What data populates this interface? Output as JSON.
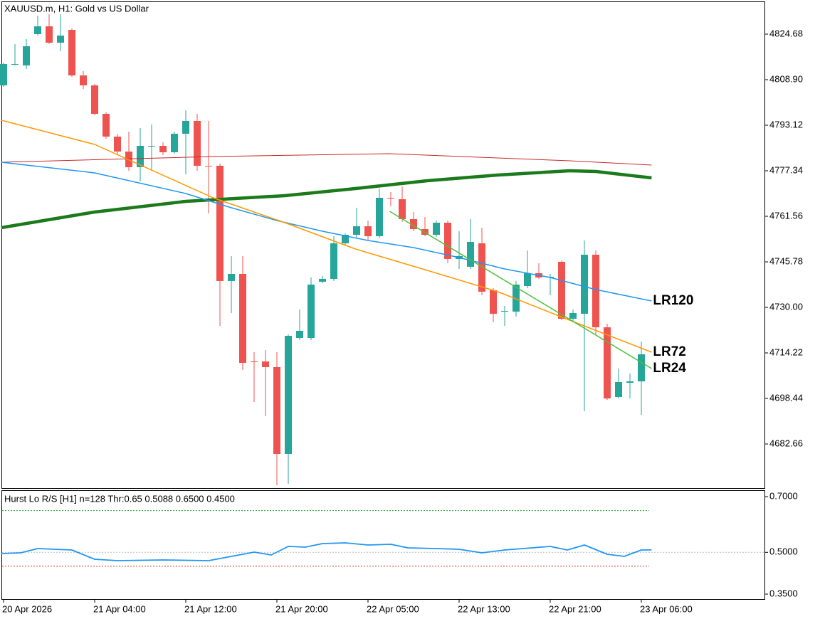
{
  "chart_data": [
    {
      "type": "candlestick",
      "title": "XAUUSD.m, H1:  Gold vs US Dollar",
      "categories": [
        "20 Apr 2026",
        null,
        null,
        null,
        null,
        null,
        null,
        null,
        "21 Apr 04:00",
        null,
        null,
        null,
        null,
        null,
        null,
        null,
        "21 Apr 12:00",
        null,
        null,
        null,
        null,
        null,
        null,
        null,
        "21 Apr 20:00",
        null,
        null,
        null,
        null,
        null,
        null,
        null,
        "22 Apr 05:00",
        null,
        null,
        null,
        null,
        null,
        null,
        null,
        "22 Apr 13:00",
        null,
        null,
        null,
        null,
        null,
        null,
        null,
        "22 Apr 21:00",
        null,
        null,
        null,
        null,
        null,
        null,
        null,
        "23 Apr 06:00"
      ],
      "open": [
        4806.93,
        4814.08,
        4813.83,
        4824.68,
        4827.39,
        4821.72,
        4826.16,
        4810.38,
        4806.93,
        4797.07,
        4789.18,
        4784.0,
        4778.58,
        4785.73,
        4785.97,
        4783.75,
        4790.17,
        4794.6,
        4779.07,
        4779.07,
        4739.13,
        4741.59,
        4711.26,
        4711.26,
        4709.29,
        4679.21,
        4719.4,
        4719.4,
        4738.88,
        4739.87,
        4752.2,
        4755.15,
        4758.11,
        4754.66,
        4767.97,
        4767.48,
        4760.57,
        4757.12,
        4755.15,
        4759.34,
        4746.77,
        4744.06,
        4752.2,
        4735.92,
        4728.53,
        4728.53,
        4737.4,
        4741.84,
        4740.36,
        4745.79,
        4726.06,
        4727.79,
        4748.25,
        4723.1,
        4698.94,
        4703.87,
        4704.36
      ],
      "high": [
        4814.82,
        4821.23,
        4822.96,
        4831.09,
        4831.58,
        4831.58,
        4826.65,
        4811.86,
        4807.42,
        4797.56,
        4790.17,
        4790.9,
        4792.13,
        4793.37,
        4787.2,
        4790.9,
        4798.3,
        4797.07,
        4794.6,
        4779.81,
        4747.76,
        4747.76,
        4714.47,
        4715.21,
        4714.47,
        4720.63,
        4729.26,
        4740.36,
        4740.85,
        4754.66,
        4755.65,
        4764.52,
        4760.09,
        4771.18,
        4769.95,
        4771.92,
        4763.05,
        4761.32,
        4760.09,
        4760.09,
        4756.39,
        4760.57,
        4757.62,
        4736.66,
        4730.5,
        4739.13,
        4749.73,
        4745.29,
        4741.59,
        4746.28,
        4729.26,
        4753.18,
        4749.73,
        4724.34,
        4708.8,
        4707.08,
        4718.17
      ],
      "low": [
        4806.44,
        4813.83,
        4812.6,
        4824.19,
        4821.23,
        4818.76,
        4809.89,
        4805.7,
        4796.57,
        4788.44,
        4782.77,
        4777.34,
        4773.64,
        4777.34,
        4782.77,
        4783.26,
        4776.11,
        4777.34,
        4762.55,
        4723.59,
        4728.03,
        4708.31,
        4697.21,
        4692.28,
        4668.36,
        4668.85,
        4718.66,
        4718.66,
        4738.38,
        4739.13,
        4751.46,
        4753.92,
        4753.18,
        4753.92,
        4765.02,
        4759.59,
        4756.39,
        4754.66,
        4754.41,
        4745.29,
        4743.32,
        4743.32,
        4734.2,
        4724.83,
        4723.59,
        4726.8,
        4736.66,
        4739.87,
        4734.2,
        4725.57,
        4725.07,
        4694.01,
        4720.63,
        4697.95,
        4698.44,
        4698.44,
        4692.78
      ],
      "close": [
        4814.33,
        4814.33,
        4820.49,
        4827.39,
        4821.72,
        4824.19,
        4810.38,
        4806.93,
        4797.07,
        4789.18,
        4784.0,
        4778.58,
        4785.97,
        4785.97,
        4783.75,
        4790.17,
        4794.6,
        4779.07,
        4778.82,
        4739.13,
        4741.59,
        4710.77,
        4711.02,
        4709.29,
        4679.21,
        4720.14,
        4721.87,
        4737.89,
        4739.87,
        4752.2,
        4755.15,
        4758.11,
        4754.66,
        4767.97,
        4767.73,
        4760.57,
        4757.12,
        4755.15,
        4759.34,
        4746.77,
        4747.76,
        4752.69,
        4735.43,
        4727.79,
        4728.77,
        4737.89,
        4741.84,
        4740.36,
        4740.61,
        4726.06,
        4728.03,
        4748.25,
        4723.1,
        4698.44,
        4704.12,
        4704.36,
        4713.74
      ],
      "up_color": "#26a69a",
      "down_color": "#ef5350",
      "series": [
        {
          "color": "#c62828",
          "x": [
            -0.2,
            18.4,
            33.9,
            49.7,
            56.9
          ],
          "values": [
            4780.3,
            4782.27,
            4783.26,
            4780.8,
            4779.31
          ]
        },
        {
          "color": "#1b7a1b",
          "x": [
            -0.2,
            8,
            16,
            24.7,
            30.9,
            37.2,
            43.4,
            49.7,
            52,
            56.9
          ],
          "values": [
            4757.62,
            4763.05,
            4766.74,
            4768.72,
            4771.18,
            4773.89,
            4775.87,
            4777.34,
            4777.1,
            4774.88
          ]
        },
        {
          "name": "LR120",
          "color": "#2196f3",
          "x": [
            -0.2,
            8,
            16,
            20,
            24,
            28,
            32,
            36,
            40,
            44,
            48,
            52,
            56.9
          ],
          "values": [
            4780.3,
            4776.6,
            4769.45,
            4764.52,
            4760.09,
            4756.39,
            4753.18,
            4750.71,
            4747.26,
            4743.32,
            4740.36,
            4736.17,
            4732.22
          ]
        },
        {
          "name": "LR72",
          "color": "#ff9800",
          "x": [
            -0.2,
            8,
            18.4,
            24.7,
            30.9,
            37.2,
            43.4,
            49.7,
            56.9
          ],
          "values": [
            4794.85,
            4786.46,
            4767.97,
            4759.34,
            4750.22,
            4742.82,
            4735.43,
            4725.57,
            4714.47
          ]
        },
        {
          "name": "LR24",
          "color": "#4cc03a",
          "x": [
            33.9,
            56.9
          ],
          "values": [
            4763.29,
            4708.8
          ]
        }
      ],
      "ylim": [
        4667.13,
        4836.02
      ],
      "yticks": [
        4824.68,
        {
          "value": 4808.9,
          "label": "4808.90"
        },
        4793.12,
        4777.34,
        4761.56,
        4745.78,
        {
          "value": 4730,
          "label": "4730.00"
        },
        4714.22,
        4698.44,
        4682.66
      ]
    },
    {
      "type": "line",
      "title": "Hurst Lo R/S [H1] n=128 Thr:0.65 0.5088 0.6500 0.4500",
      "series": [
        {
          "color": "#2196f3",
          "x": [
            -0.2,
            1.5,
            3,
            6,
            8,
            10,
            14,
            18,
            20,
            22,
            23.5,
            25,
            26.5,
            28,
            30,
            32,
            34,
            35.5,
            38,
            40,
            42,
            44,
            48,
            49.5,
            51,
            53,
            54.5,
            56,
            56.9
          ],
          "values": [
            0.4957,
            0.4982,
            0.5136,
            0.5084,
            0.4752,
            0.4701,
            0.4727,
            0.4701,
            0.4855,
            0.5008,
            0.4906,
            0.5212,
            0.5187,
            0.5314,
            0.534,
            0.5263,
            0.5289,
            0.5161,
            0.5136,
            0.511,
            0.4982,
            0.5084,
            0.5212,
            0.5084,
            0.5263,
            0.4931,
            0.4855,
            0.5084,
            0.5088
          ]
        }
      ],
      "levels": [
        {
          "value": 0.65,
          "color": "#2e9e3e"
        },
        {
          "value": 0.45,
          "color": "#d2442a"
        },
        {
          "value": 0.5,
          "color": "#bbbbbb"
        }
      ],
      "ylim": [
        0.3296,
        0.723
      ],
      "yticks": [
        {
          "value": 0.7,
          "label": "0.7000"
        },
        {
          "value": 0.5,
          "label": "0.5000"
        },
        {
          "value": 0.35,
          "label": "0.3500"
        }
      ]
    }
  ]
}
